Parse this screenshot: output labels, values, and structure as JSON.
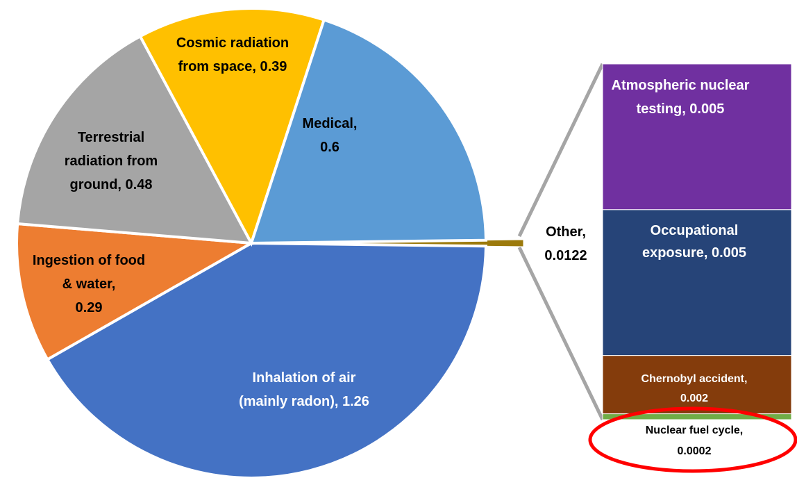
{
  "chart_data": {
    "type": "pie",
    "value_labels": [
      "Other, 0.0122",
      "Inhalation of air (mainly radon), 1.26",
      "Ingestion of food & water, 0.29",
      "Terrestrial radiation from ground, 0.48",
      "Cosmic radiation from space, 0.39",
      "Medical, 0.6"
    ],
    "values": [
      0.0122,
      1.26,
      0.29,
      0.48,
      0.39,
      0.6
    ],
    "colors": [
      "#9c7a0c",
      "#4472c4",
      "#ed7d31",
      "#a5a5a5",
      "#ffc000",
      "#5b9bd5"
    ],
    "bar": {
      "value_labels": [
        "Atmospheric nuclear testing, 0.005",
        "Occupational exposure, 0.005",
        "Chernobyl accident, 0.002",
        "Nuclear fuel cycle, 0.0002"
      ],
      "values": [
        0.005,
        0.005,
        0.002,
        0.0002
      ],
      "colors": [
        "#7030a0",
        "#264478",
        "#843c0c",
        "#70ad47"
      ]
    }
  }
}
